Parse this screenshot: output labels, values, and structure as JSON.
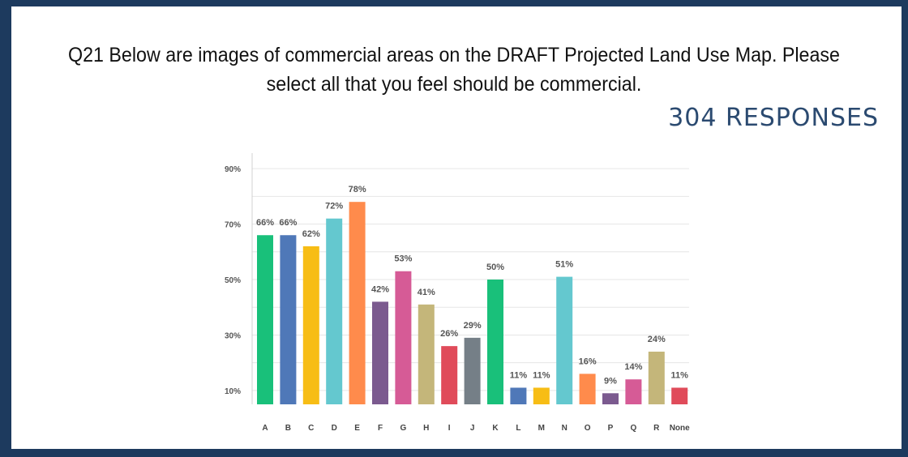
{
  "question": {
    "line1": "Q21 Below are images of commercial areas on the DRAFT Projected Land Use Map. Please",
    "line2": "select all that you feel should be commercial."
  },
  "responses_label": "304 RESPONSES",
  "colors": {
    "frame": "#1d3a5e",
    "responses_text": "#2b4a70"
  },
  "chart_data": {
    "type": "bar",
    "categories": [
      "A",
      "B",
      "C",
      "D",
      "E",
      "F",
      "G",
      "H",
      "I",
      "J",
      "K",
      "L",
      "M",
      "N",
      "O",
      "P",
      "Q",
      "R",
      "None"
    ],
    "values": [
      66,
      66,
      62,
      72,
      78,
      42,
      53,
      41,
      26,
      29,
      50,
      11,
      11,
      51,
      16,
      9,
      14,
      24,
      11
    ],
    "data_labels": [
      "66%",
      "66%",
      "62%",
      "72%",
      "78%",
      "42%",
      "53%",
      "41%",
      "26%",
      "29%",
      "50%",
      "11%",
      "11%",
      "51%",
      "16%",
      "9%",
      "14%",
      "24%",
      "11%"
    ],
    "colors": [
      "#19c07a",
      "#4f78b8",
      "#f7bd15",
      "#64c8cf",
      "#ff8b4c",
      "#7b5a8f",
      "#d65b96",
      "#c4b67a",
      "#e04b5a",
      "#757f87",
      "#19c07a",
      "#4f78b8",
      "#f7bd15",
      "#64c8cf",
      "#ff8b4c",
      "#7b5a8f",
      "#d65b96",
      "#c4b67a",
      "#e04b5a"
    ],
    "yticks": [
      10,
      30,
      50,
      70,
      90
    ],
    "ytick_labels": [
      "10%",
      "30%",
      "50%",
      "70%",
      "90%"
    ],
    "ylim": [
      5,
      95
    ],
    "grid": true,
    "legend": "none",
    "title": "",
    "xlabel": "",
    "ylabel": ""
  }
}
